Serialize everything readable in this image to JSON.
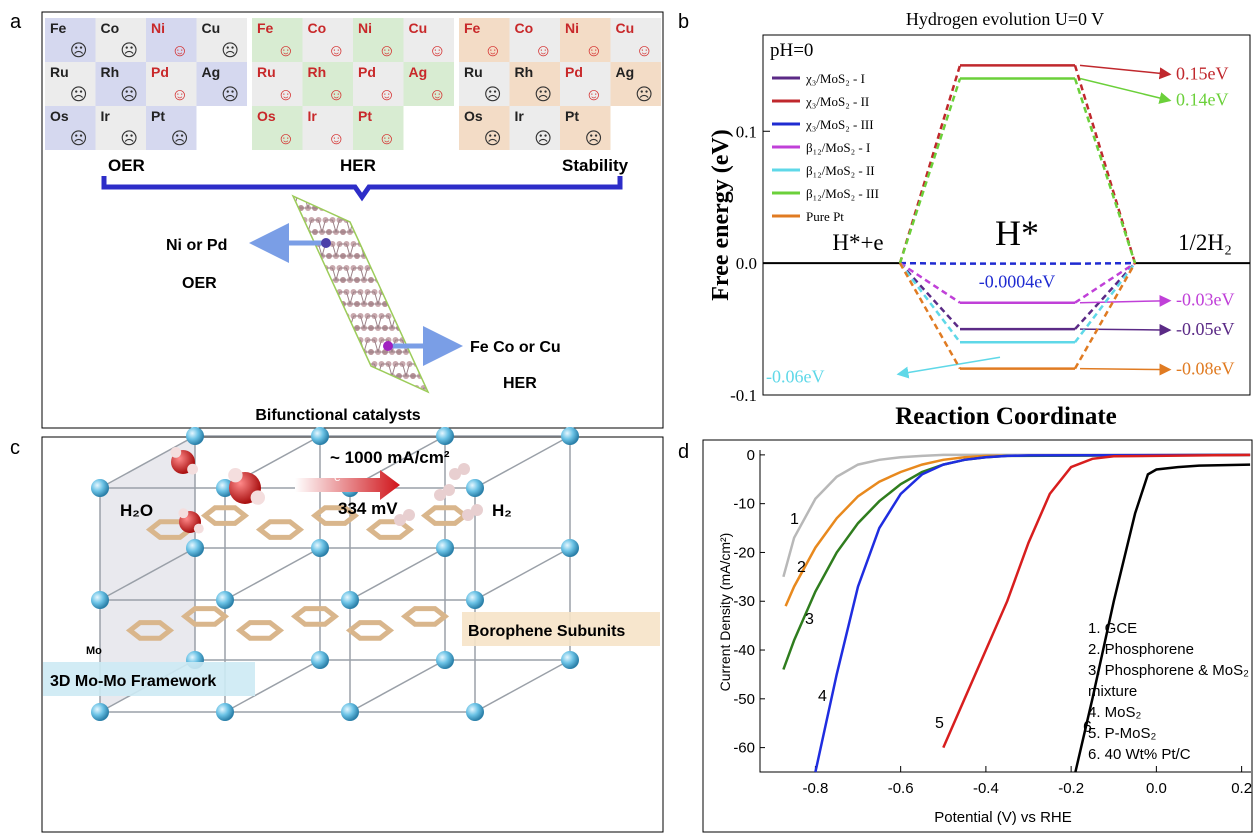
{
  "panel_labels": [
    "a",
    "b",
    "c",
    "d"
  ],
  "panel_a": {
    "grids": [
      {
        "label": "OER",
        "color": "#d5d8ef",
        "cells": [
          {
            "el": "Fe",
            "face": "☹"
          },
          {
            "el": "Co",
            "face": "☹"
          },
          {
            "el": "Ni",
            "face": "☺"
          },
          {
            "el": "Cu",
            "face": "☹"
          },
          {
            "el": "Ru",
            "face": "☹"
          },
          {
            "el": "Rh",
            "face": "☹"
          },
          {
            "el": "Pd",
            "face": "☺"
          },
          {
            "el": "Ag",
            "face": "☹"
          },
          {
            "el": "Os",
            "face": "☹"
          },
          {
            "el": "Ir",
            "face": "☹"
          },
          {
            "el": "Pt",
            "face": "☹"
          }
        ]
      },
      {
        "label": "HER",
        "color": "#d8ecd2",
        "cells": [
          {
            "el": "Fe",
            "face": "☺"
          },
          {
            "el": "Co",
            "face": "☺"
          },
          {
            "el": "Ni",
            "face": "☺"
          },
          {
            "el": "Cu",
            "face": "☺"
          },
          {
            "el": "Ru",
            "face": "☺"
          },
          {
            "el": "Rh",
            "face": "☺"
          },
          {
            "el": "Pd",
            "face": "☺"
          },
          {
            "el": "Ag",
            "face": "☺"
          },
          {
            "el": "Os",
            "face": "☺"
          },
          {
            "el": "Ir",
            "face": "☺"
          },
          {
            "el": "Pt",
            "face": "☺"
          }
        ]
      },
      {
        "label": "Stability",
        "color": "#f3dcc6",
        "cells": [
          {
            "el": "Fe",
            "face": "☺"
          },
          {
            "el": "Co",
            "face": "☺"
          },
          {
            "el": "Ni",
            "face": "☺"
          },
          {
            "el": "Cu",
            "face": "☺"
          },
          {
            "el": "Ru",
            "face": "☹"
          },
          {
            "el": "Rh",
            "face": "☹"
          },
          {
            "el": "Pd",
            "face": "☺"
          },
          {
            "el": "Ag",
            "face": "☹"
          },
          {
            "el": "Os",
            "face": "☹"
          },
          {
            "el": "Ir",
            "face": "☹"
          },
          {
            "el": "Pt",
            "face": "☹"
          }
        ]
      }
    ],
    "left_label": "Ni or Pd",
    "left_sub": "OER",
    "right_label": "Fe Co or Cu",
    "right_sub": "HER",
    "caption": "Bifunctional catalysts"
  },
  "panel_c": {
    "rate": "~ 1000 mA/cm²",
    "electron": "e⁻",
    "voltage": "334 mV",
    "reactant": "H₂O",
    "product": "H₂",
    "layer_label": "Borophene Subunits",
    "node_label": "Mo",
    "framework_label": "3D Mo-Mo Framework"
  },
  "chart_data": [
    {
      "type": "energy-diagram",
      "title": "Hydrogen evolution U=0 V",
      "subtitle": "pH=0",
      "y_label": "Free energy (eV)",
      "x_label": "Reaction Coordinate",
      "categories": [
        "H*+e",
        "H*",
        "1/2H₂"
      ],
      "ylim": [
        -0.1,
        0.173
      ],
      "yticks": [
        -0.1,
        {
          "value": 0,
          "label": "0.0"
        },
        0.1
      ],
      "series": [
        {
          "name": "χ₃/MoS₂ - I",
          "color": "#5b2a86",
          "values": [
            0,
            -0.05,
            0
          ],
          "value_labels": [
            null,
            "-0.05eV",
            null
          ]
        },
        {
          "name": "χ₃/MoS₂ - II",
          "color": "#c0282d",
          "values": [
            0,
            0.15,
            0
          ],
          "value_labels": [
            null,
            "0.15eV",
            null
          ]
        },
        {
          "name": "χ₃/MoS₂ - III",
          "color": "#1f2bd1",
          "values": [
            0,
            -0.0004,
            0
          ],
          "value_labels": [
            null,
            "-0.0004eV",
            null
          ]
        },
        {
          "name": "β₁₂/MoS₂ - I",
          "color": "#c040d8",
          "values": [
            0,
            -0.03,
            0
          ],
          "value_labels": [
            null,
            "-0.03eV",
            null
          ]
        },
        {
          "name": "β₁₂/MoS₂ - II",
          "color": "#5fd8e8",
          "values": [
            0,
            -0.06,
            0
          ],
          "value_labels": [
            null,
            "-0.06eV",
            null
          ]
        },
        {
          "name": "β₁₂/MoS₂ - III",
          "color": "#6bd03a",
          "values": [
            0,
            0.14,
            0
          ],
          "value_labels": [
            null,
            "0.14eV",
            null
          ]
        },
        {
          "name": "Pure Pt",
          "color": "#e07b22",
          "values": [
            0,
            -0.08,
            0
          ],
          "value_labels": [
            null,
            "-0.08eV",
            null
          ]
        }
      ]
    },
    {
      "type": "line",
      "x_label": "Potential (V) vs RHE",
      "y_label": "Current Density (mA/cm²)",
      "xlim": [
        -0.93,
        0.222
      ],
      "ylim": [
        -65,
        1
      ],
      "xticks": [
        -0.8,
        -0.6,
        -0.4,
        -0.2,
        {
          "value": 0,
          "label": "0.0"
        },
        0.2
      ],
      "yticks": [
        0,
        -10,
        -20,
        -30,
        -40,
        -50,
        -60
      ],
      "series": [
        {
          "name": "1. GCE",
          "tag": "1",
          "color": "#b8b8b8",
          "x": [
            -0.875,
            -0.85,
            -0.8,
            -0.75,
            -0.7,
            -0.65,
            -0.6,
            -0.55,
            -0.5,
            0.22
          ],
          "values": [
            -25,
            -17,
            -9,
            -4.5,
            -2,
            -1,
            -0.5,
            -0.2,
            0,
            0
          ]
        },
        {
          "name": "2. Phosphorene",
          "tag": "2",
          "color": "#e8891e",
          "x": [
            -0.87,
            -0.85,
            -0.8,
            -0.75,
            -0.7,
            -0.65,
            -0.6,
            -0.55,
            -0.5,
            -0.45,
            -0.4,
            0.22
          ],
          "values": [
            -31,
            -27,
            -19,
            -13,
            -8.5,
            -5.5,
            -3.5,
            -2,
            -1,
            -0.5,
            -0.2,
            0
          ]
        },
        {
          "name": "3. Phosphorene & MoS₂ mixture",
          "tag": "3",
          "color": "#2f7d1e",
          "x": [
            -0.875,
            -0.85,
            -0.8,
            -0.75,
            -0.7,
            -0.65,
            -0.6,
            -0.55,
            -0.5,
            -0.45,
            -0.4,
            -0.35,
            0.22
          ],
          "values": [
            -44,
            -38,
            -28,
            -20,
            -14,
            -9.5,
            -6,
            -3.5,
            -2,
            -1,
            -0.5,
            -0.2,
            0
          ]
        },
        {
          "name": "4. MoS₂",
          "tag": "4",
          "color": "#1f2de0",
          "x": [
            -0.8,
            -0.75,
            -0.7,
            -0.65,
            -0.6,
            -0.55,
            -0.5,
            -0.45,
            -0.4,
            -0.35,
            -0.3,
            0.22
          ],
          "values": [
            -65,
            -45,
            -27,
            -15,
            -8,
            -4,
            -2,
            -1,
            -0.5,
            -0.2,
            -0.1,
            0
          ]
        },
        {
          "name": "5. P-MoS₂",
          "tag": "5",
          "color": "#d81e1e",
          "x": [
            -0.5,
            -0.45,
            -0.4,
            -0.35,
            -0.3,
            -0.25,
            -0.2,
            -0.15,
            -0.1,
            0.22
          ],
          "values": [
            -60,
            -50,
            -40,
            -30,
            -18,
            -8,
            -2.5,
            -0.8,
            -0.3,
            0
          ]
        },
        {
          "name": "6. 40 Wt% Pt/C",
          "tag": "6",
          "color": "#000000",
          "x": [
            -0.19,
            -0.15,
            -0.1,
            -0.05,
            -0.02,
            0,
            0.05,
            0.1,
            0.22
          ],
          "values": [
            -65,
            -50,
            -30,
            -12,
            -4,
            -3,
            -2.5,
            -2.2,
            -2
          ]
        }
      ]
    }
  ]
}
